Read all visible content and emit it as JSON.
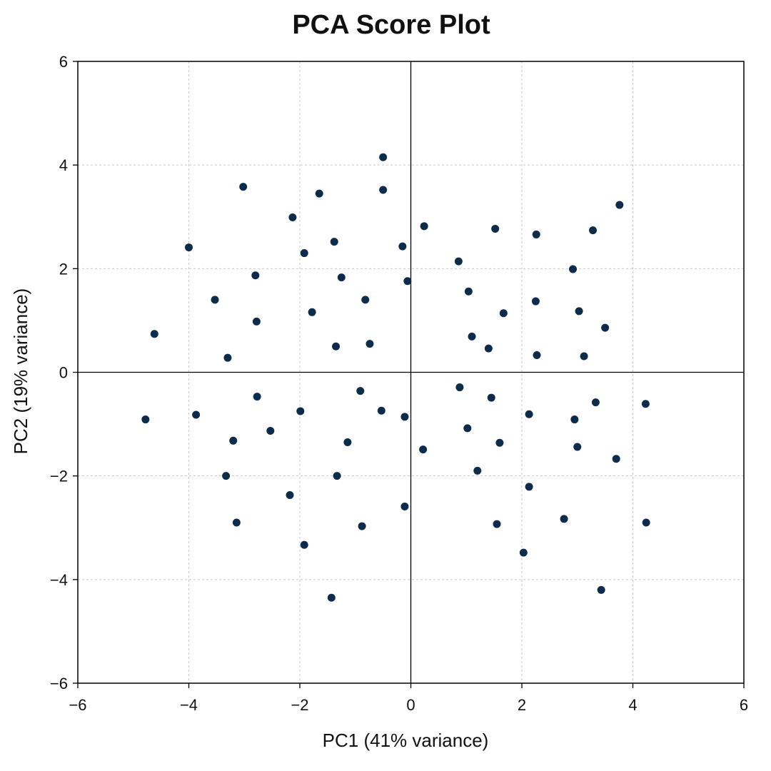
{
  "chart_data": {
    "type": "scatter",
    "title": "PCA Score Plot",
    "xlabel": "PC1 (41% variance)",
    "ylabel": "PC2 (19% variance)",
    "xlim": [
      -6,
      6
    ],
    "ylim": [
      -6,
      6
    ],
    "xticks": [
      -6,
      -4,
      -2,
      0,
      2,
      4,
      6
    ],
    "yticks": [
      -6,
      -4,
      -2,
      0,
      2,
      4,
      6
    ],
    "xtick_labels": [
      "−6",
      "−4",
      "−2",
      "0",
      "2",
      "4",
      "6"
    ],
    "ytick_labels": [
      "−6",
      "−4",
      "−2",
      "0",
      "2",
      "4",
      "6"
    ],
    "grid": true,
    "zero_lines": true,
    "marker_color": "#0d2b4a",
    "points": [
      {
        "x": -0.5,
        "y": 4.15
      },
      {
        "x": -0.5,
        "y": 3.52
      },
      {
        "x": -3.02,
        "y": 3.58
      },
      {
        "x": -1.65,
        "y": 3.45
      },
      {
        "x": -2.13,
        "y": 2.99
      },
      {
        "x": -4.0,
        "y": 2.41
      },
      {
        "x": -1.38,
        "y": 2.52
      },
      {
        "x": -1.92,
        "y": 2.3
      },
      {
        "x": -0.15,
        "y": 2.43
      },
      {
        "x": -2.8,
        "y": 1.87
      },
      {
        "x": -1.25,
        "y": 1.83
      },
      {
        "x": -0.06,
        "y": 1.76
      },
      {
        "x": -3.53,
        "y": 1.4
      },
      {
        "x": -0.82,
        "y": 1.4
      },
      {
        "x": -1.78,
        "y": 1.16
      },
      {
        "x": -2.78,
        "y": 0.98
      },
      {
        "x": -4.62,
        "y": 0.74
      },
      {
        "x": -3.3,
        "y": 0.28
      },
      {
        "x": -1.35,
        "y": 0.5
      },
      {
        "x": -0.74,
        "y": 0.55
      },
      {
        "x": 0.24,
        "y": 2.82
      },
      {
        "x": 1.52,
        "y": 2.77
      },
      {
        "x": 2.26,
        "y": 2.66
      },
      {
        "x": 3.28,
        "y": 2.74
      },
      {
        "x": 3.76,
        "y": 3.23
      },
      {
        "x": 0.86,
        "y": 2.14
      },
      {
        "x": 2.92,
        "y": 1.99
      },
      {
        "x": 1.04,
        "y": 1.56
      },
      {
        "x": 2.25,
        "y": 1.37
      },
      {
        "x": 1.67,
        "y": 1.14
      },
      {
        "x": 3.03,
        "y": 1.18
      },
      {
        "x": 3.5,
        "y": 0.86
      },
      {
        "x": 1.1,
        "y": 0.69
      },
      {
        "x": 1.4,
        "y": 0.46
      },
      {
        "x": 2.27,
        "y": 0.33
      },
      {
        "x": 3.12,
        "y": 0.31
      },
      {
        "x": -4.78,
        "y": -0.91
      },
      {
        "x": -3.87,
        "y": -0.82
      },
      {
        "x": -2.77,
        "y": -0.47
      },
      {
        "x": -1.99,
        "y": -0.75
      },
      {
        "x": -0.91,
        "y": -0.36
      },
      {
        "x": -0.53,
        "y": -0.74
      },
      {
        "x": -0.11,
        "y": -0.86
      },
      {
        "x": -2.53,
        "y": -1.13
      },
      {
        "x": -3.2,
        "y": -1.32
      },
      {
        "x": -1.14,
        "y": -1.35
      },
      {
        "x": -3.33,
        "y": -2.0
      },
      {
        "x": -1.33,
        "y": -2.0
      },
      {
        "x": -2.18,
        "y": -2.37
      },
      {
        "x": -0.11,
        "y": -2.59
      },
      {
        "x": -3.14,
        "y": -2.9
      },
      {
        "x": -0.88,
        "y": -2.97
      },
      {
        "x": -1.92,
        "y": -3.33
      },
      {
        "x": -1.43,
        "y": -4.35
      },
      {
        "x": 0.88,
        "y": -0.29
      },
      {
        "x": 1.45,
        "y": -0.49
      },
      {
        "x": 2.13,
        "y": -0.81
      },
      {
        "x": 2.95,
        "y": -0.91
      },
      {
        "x": 3.33,
        "y": -0.58
      },
      {
        "x": 4.23,
        "y": -0.61
      },
      {
        "x": 1.02,
        "y": -1.08
      },
      {
        "x": 1.6,
        "y": -1.36
      },
      {
        "x": 3.0,
        "y": -1.44
      },
      {
        "x": 3.7,
        "y": -1.67
      },
      {
        "x": 0.22,
        "y": -1.49
      },
      {
        "x": 1.2,
        "y": -1.9
      },
      {
        "x": 2.13,
        "y": -2.21
      },
      {
        "x": 2.76,
        "y": -2.83
      },
      {
        "x": 1.55,
        "y": -2.93
      },
      {
        "x": 4.24,
        "y": -2.9
      },
      {
        "x": 2.03,
        "y": -3.48
      },
      {
        "x": 3.43,
        "y": -4.2
      }
    ]
  }
}
